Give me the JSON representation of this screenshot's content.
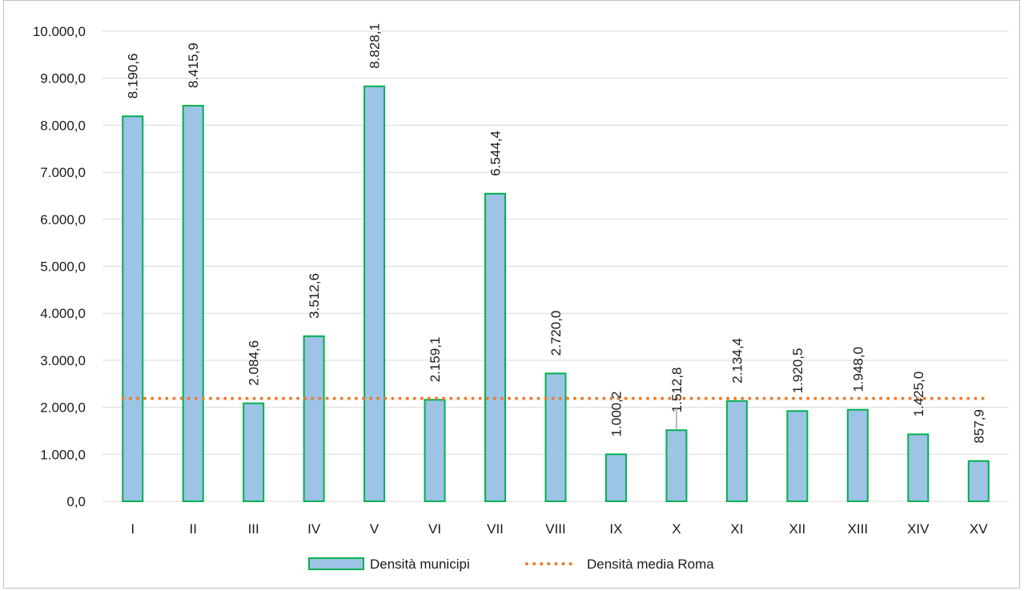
{
  "chart_data": {
    "type": "bar",
    "categories": [
      "I",
      "II",
      "III",
      "IV",
      "V",
      "VI",
      "VII",
      "VIII",
      "IX",
      "X",
      "XI",
      "XII",
      "XIII",
      "XIV",
      "XV"
    ],
    "series": [
      {
        "name": "Densità municipi",
        "values": [
          8190.6,
          8415.9,
          2084.6,
          3512.6,
          8828.1,
          2159.1,
          6544.4,
          2720.0,
          1000.2,
          1512.8,
          2134.4,
          1920.5,
          1948.0,
          1425.0,
          857.9
        ],
        "labels": [
          "8.190,6",
          "8.415,9",
          "2.084,6",
          "3.512,6",
          "8.828,1",
          "2.159,1",
          "6.544,4",
          "2.720,0",
          "1.000,2",
          "1.512,8",
          "2.134,4",
          "1.920,5",
          "1.948,0",
          "1.425,0",
          "857,9"
        ]
      },
      {
        "name": "Densità media Roma",
        "type": "line",
        "value": 2190
      }
    ],
    "y_ticks": [
      "0,0",
      "1.000,0",
      "2.000,0",
      "3.000,0",
      "4.000,0",
      "5.000,0",
      "6.000,0",
      "7.000,0",
      "8.000,0",
      "9.000,0",
      "10.000,0"
    ],
    "ylim": [
      0,
      10000
    ],
    "grid": true,
    "legend_position": "bottom",
    "colors": {
      "bar_fill": "#9dc3e6",
      "bar_stroke": "#00b050",
      "avg_line": "#ed7d31",
      "grid": "#d9d9d9"
    }
  }
}
